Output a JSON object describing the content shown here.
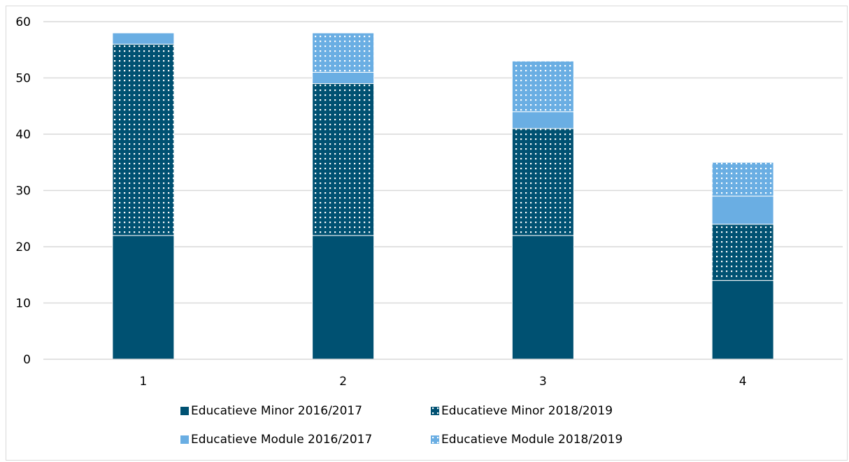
{
  "chart_data": {
    "type": "bar",
    "stacked": true,
    "categories": [
      "1",
      "2",
      "3",
      "4"
    ],
    "series": [
      {
        "name": "Educatieve Minor 2016/2017",
        "values": [
          22,
          22,
          22,
          14
        ],
        "color": "#005172",
        "pattern": "solid"
      },
      {
        "name": "Educatieve Minor 2018/2019",
        "values": [
          34,
          27,
          19,
          10
        ],
        "color": "#005172",
        "pattern": "dotted"
      },
      {
        "name": "Educatieve Module 2016/2017",
        "values": [
          2,
          2,
          3,
          5
        ],
        "color": "#6aaee3",
        "pattern": "solid"
      },
      {
        "name": "Educatieve Module 2018/2019",
        "values": [
          0,
          7,
          9,
          6
        ],
        "color": "#6aaee3",
        "pattern": "dotted"
      }
    ],
    "y_ticks": [
      "0",
      "10",
      "20",
      "30",
      "40",
      "50",
      "60"
    ],
    "ylim": [
      0,
      60
    ],
    "grid": true,
    "legend_position": "bottom",
    "title": "",
    "xlabel": "",
    "ylabel": ""
  }
}
